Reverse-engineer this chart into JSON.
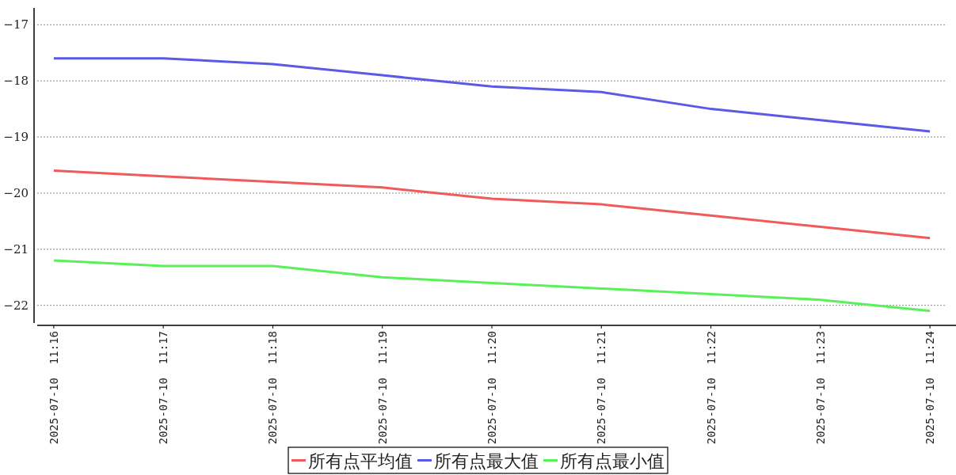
{
  "chart_data": {
    "type": "line",
    "categories": [
      "2025-07-10  11:16",
      "2025-07-10  11:17",
      "2025-07-10  11:18",
      "2025-07-10  11:19",
      "2025-07-10  11:20",
      "2025-07-10  11:21",
      "2025-07-10  11:22",
      "2025-07-10  11:23",
      "2025-07-10  11:24"
    ],
    "series": [
      {
        "name": "所有点平均值",
        "color": "#f05a5a",
        "values": [
          -19.6,
          -19.7,
          -19.8,
          -19.9,
          -20.1,
          -20.2,
          -20.4,
          -20.6,
          -20.8
        ]
      },
      {
        "name": "所有点最大值",
        "color": "#5a5ae6",
        "values": [
          -17.6,
          -17.6,
          -17.7,
          -17.9,
          -18.1,
          -18.2,
          -18.5,
          -18.7,
          -18.9
        ]
      },
      {
        "name": "所有点最小值",
        "color": "#5af05a",
        "values": [
          -21.2,
          -21.3,
          -21.3,
          -21.5,
          -21.6,
          -21.7,
          -21.8,
          -21.9,
          -22.1
        ]
      }
    ],
    "ylim": [
      -22.3,
      -16.7
    ],
    "yticks": [
      -22,
      -21,
      -20,
      -19,
      -18,
      -17
    ],
    "grid": "y",
    "legend": "bottom",
    "marker": "none",
    "line_style": "solid"
  }
}
